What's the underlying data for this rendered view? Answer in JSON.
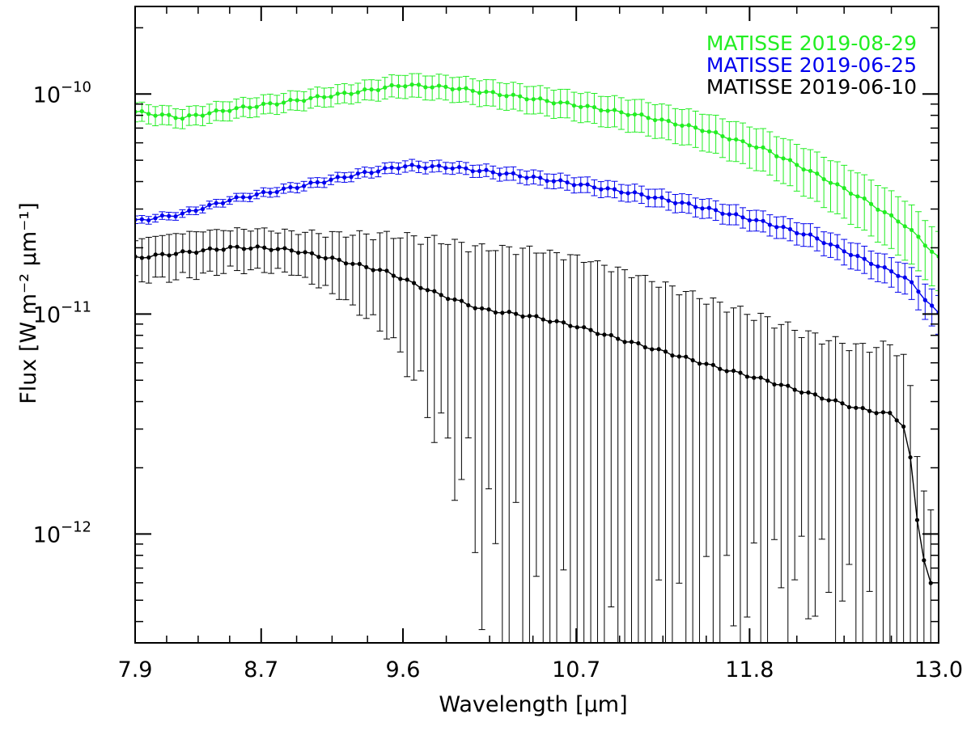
{
  "chart_data": {
    "type": "line",
    "title": "",
    "xlabel": "Wavelength [μm]",
    "ylabel": "Flux [W m⁻² μm⁻¹]",
    "xscale": "linear",
    "yscale": "log",
    "xlim": [
      7.9,
      13.0
    ],
    "ylim": [
      3.2e-13,
      2.5e-10
    ],
    "x_ticks": [
      {
        "value": 7.9,
        "label": "7.9"
      },
      {
        "value": 8.7,
        "label": "8.7"
      },
      {
        "value": 9.6,
        "label": "9.6"
      },
      {
        "value": 10.7,
        "label": "10.7"
      },
      {
        "value": 11.8,
        "label": "11.8"
      },
      {
        "value": 13.0,
        "label": "13.0"
      }
    ],
    "y_ticks": [
      {
        "value": 1e-10,
        "base": "10",
        "exp": "−10"
      },
      {
        "value": 1e-11,
        "base": "10",
        "exp": "−11"
      },
      {
        "value": 1e-12,
        "base": "10",
        "exp": "−12"
      }
    ],
    "legend_position": "top-right",
    "series": [
      {
        "name": "MATISSE 2019-08-29",
        "color": "#22ee22",
        "x": [
          7.9,
          8.2,
          8.5,
          8.9,
          9.3,
          9.6,
          9.9,
          10.3,
          10.7,
          11.1,
          11.5,
          11.9,
          12.2,
          12.5,
          12.8,
          13.0
        ],
        "y": [
          8.3e-11,
          7.8e-11,
          8.5e-11,
          9.3e-11,
          1.02e-10,
          1.1e-10,
          1.07e-10,
          9.8e-11,
          8.9e-11,
          8e-11,
          6.9e-11,
          5.6e-11,
          4.4e-11,
          3.4e-11,
          2.5e-11,
          1.8e-11
        ],
        "err": [
          0.1,
          0.1,
          0.1,
          0.1,
          0.1,
          0.12,
          0.13,
          0.14,
          0.15,
          0.17,
          0.19,
          0.22,
          0.25,
          0.28,
          0.3,
          0.3
        ]
      },
      {
        "name": "MATISSE 2019-06-25",
        "color": "#0000ee",
        "x": [
          7.9,
          8.2,
          8.5,
          8.9,
          9.3,
          9.6,
          9.9,
          10.3,
          10.7,
          11.1,
          11.5,
          11.9,
          12.2,
          12.5,
          12.8,
          13.0
        ],
        "y": [
          2.65e-11,
          2.85e-11,
          3.3e-11,
          3.75e-11,
          4.3e-11,
          4.7e-11,
          4.65e-11,
          4.3e-11,
          3.9e-11,
          3.5e-11,
          3.05e-11,
          2.6e-11,
          2.25e-11,
          1.8e-11,
          1.45e-11,
          1e-11
        ],
        "err": [
          0.04,
          0.04,
          0.04,
          0.05,
          0.05,
          0.06,
          0.06,
          0.07,
          0.08,
          0.09,
          0.1,
          0.11,
          0.12,
          0.14,
          0.16,
          0.2
        ]
      },
      {
        "name": "MATISSE 2019-06-10",
        "color": "#000000",
        "x": [
          7.9,
          8.2,
          8.5,
          8.7,
          8.9,
          9.2,
          9.5,
          9.8,
          10.1,
          10.4,
          10.7,
          11.0,
          11.3,
          11.6,
          11.9,
          12.2,
          12.5,
          12.7,
          12.8,
          12.88,
          12.95
        ],
        "y": [
          1.8e-11,
          1.9e-11,
          2e-11,
          2e-11,
          1.95e-11,
          1.75e-11,
          1.55e-11,
          1.25e-11,
          1.05e-11,
          9.8e-12,
          8.8e-12,
          7.6e-12,
          6.6e-12,
          5.7e-12,
          5e-12,
          4.3e-12,
          3.7e-12,
          3.5e-12,
          3e-12,
          9e-13,
          6e-13
        ],
        "err": [
          0.2,
          0.22,
          0.2,
          0.2,
          0.2,
          0.3,
          0.45,
          0.7,
          0.85,
          0.95,
          1.0,
          1.0,
          0.95,
          0.9,
          0.85,
          0.8,
          0.85,
          1.0,
          1.0,
          1.0,
          1.0
        ]
      }
    ]
  }
}
